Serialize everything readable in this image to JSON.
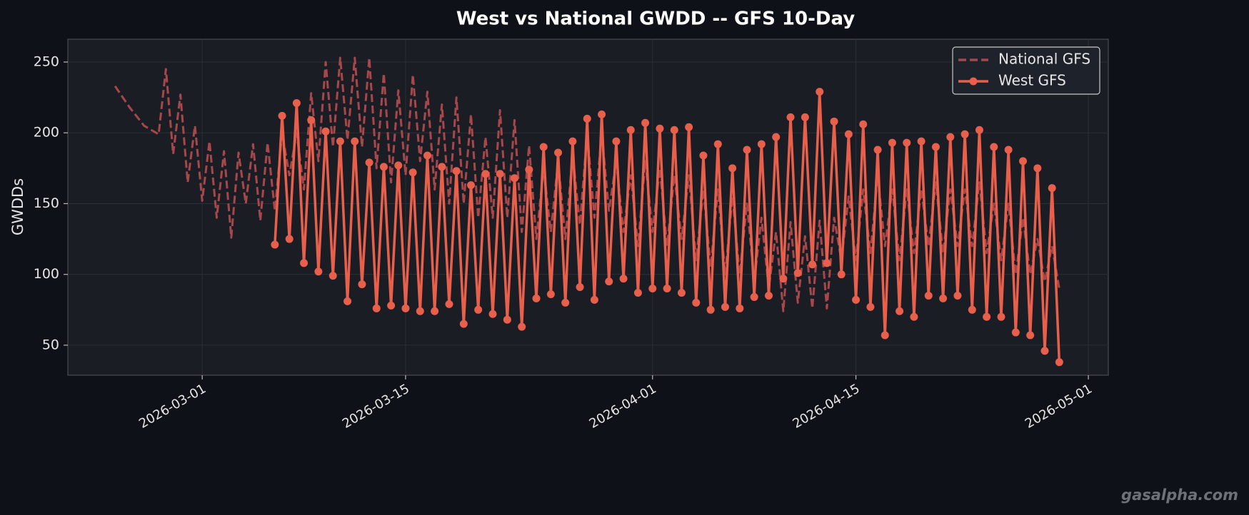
{
  "chart_data": {
    "type": "line",
    "title": "West vs National GWDD -- GFS 10-Day",
    "ylabel": "GWDDs",
    "watermark": "gasalpha.com",
    "grid": true,
    "legend": "upper right",
    "xlim": [
      "2026-02-19T18:00",
      "2026-05-02T09:00"
    ],
    "xticks": [
      "2026-03-01",
      "2026-03-15",
      "2026-04-01",
      "2026-04-15",
      "2026-05-01"
    ],
    "ylim": [
      28.8,
      266.1
    ],
    "yticks": [
      50,
      100,
      150,
      200,
      250
    ],
    "x": [
      "2026-02-23T00:00",
      "2026-02-24T00:00",
      "2026-02-25T00:00",
      "2026-02-26T00:00",
      "2026-02-26T12:00",
      "2026-02-27T00:00",
      "2026-02-27T12:00",
      "2026-02-28T00:00",
      "2026-02-28T12:00",
      "2026-03-01T00:00",
      "2026-03-01T12:00",
      "2026-03-02T00:00",
      "2026-03-02T12:00",
      "2026-03-03T00:00",
      "2026-03-03T12:00",
      "2026-03-04T00:00",
      "2026-03-04T12:00",
      "2026-03-05T00:00",
      "2026-03-05T12:00",
      "2026-03-06T00:00",
      "2026-03-06T12:00",
      "2026-03-07T00:00",
      "2026-03-07T12:00",
      "2026-03-08T00:00",
      "2026-03-08T12:00",
      "2026-03-09T00:00",
      "2026-03-09T12:00",
      "2026-03-10T00:00",
      "2026-03-10T12:00",
      "2026-03-11T00:00",
      "2026-03-11T12:00",
      "2026-03-12T00:00",
      "2026-03-12T12:00",
      "2026-03-13T00:00",
      "2026-03-13T12:00",
      "2026-03-14T00:00",
      "2026-03-14T12:00",
      "2026-03-15T00:00",
      "2026-03-15T12:00",
      "2026-03-16T00:00",
      "2026-03-16T12:00",
      "2026-03-17T00:00",
      "2026-03-17T12:00",
      "2026-03-18T00:00",
      "2026-03-18T12:00",
      "2026-03-19T00:00",
      "2026-03-19T12:00",
      "2026-03-20T00:00",
      "2026-03-20T12:00",
      "2026-03-21T00:00",
      "2026-03-21T12:00",
      "2026-03-22T00:00",
      "2026-03-22T12:00",
      "2026-03-23T00:00",
      "2026-03-23T12:00",
      "2026-03-24T00:00",
      "2026-03-24T12:00",
      "2026-03-25T00:00",
      "2026-03-25T12:00",
      "2026-03-26T00:00",
      "2026-03-26T12:00",
      "2026-03-27T00:00",
      "2026-03-27T12:00",
      "2026-03-28T00:00",
      "2026-03-28T12:00",
      "2026-03-29T00:00",
      "2026-03-29T12:00",
      "2026-03-30T00:00",
      "2026-03-30T12:00",
      "2026-03-31T00:00",
      "2026-03-31T12:00",
      "2026-04-01T00:00",
      "2026-04-01T12:00",
      "2026-04-02T00:00",
      "2026-04-02T12:00",
      "2026-04-03T00:00",
      "2026-04-03T12:00",
      "2026-04-04T00:00",
      "2026-04-04T12:00",
      "2026-04-05T00:00",
      "2026-04-05T12:00",
      "2026-04-06T00:00",
      "2026-04-06T12:00",
      "2026-04-07T00:00",
      "2026-04-07T12:00",
      "2026-04-08T00:00",
      "2026-04-08T12:00",
      "2026-04-09T00:00",
      "2026-04-09T12:00",
      "2026-04-10T00:00",
      "2026-04-10T12:00",
      "2026-04-11T00:00",
      "2026-04-11T12:00",
      "2026-04-12T00:00",
      "2026-04-12T12:00",
      "2026-04-13T00:00",
      "2026-04-13T12:00",
      "2026-04-14T00:00",
      "2026-04-14T12:00",
      "2026-04-15T00:00",
      "2026-04-15T12:00",
      "2026-04-16T00:00",
      "2026-04-16T12:00",
      "2026-04-17T00:00",
      "2026-04-17T12:00",
      "2026-04-18T00:00",
      "2026-04-18T12:00",
      "2026-04-19T00:00",
      "2026-04-19T12:00",
      "2026-04-20T00:00",
      "2026-04-20T12:00",
      "2026-04-21T00:00",
      "2026-04-21T12:00",
      "2026-04-22T00:00",
      "2026-04-22T12:00",
      "2026-04-23T00:00",
      "2026-04-23T12:00",
      "2026-04-24T00:00",
      "2026-04-24T12:00",
      "2026-04-25T00:00",
      "2026-04-25T12:00",
      "2026-04-26T00:00",
      "2026-04-26T12:00",
      "2026-04-27T00:00",
      "2026-04-27T12:00",
      "2026-04-28T00:00",
      "2026-04-28T12:00",
      "2026-04-29T00:00"
    ],
    "series": [
      {
        "name": "National GFS",
        "color": "#a5474b",
        "linestyle": "dashed",
        "marker": "none",
        "values": [
          233,
          218,
          205,
          199,
          245,
          185,
          227,
          165,
          205,
          152,
          194,
          140,
          187,
          126,
          186,
          150,
          192,
          138,
          193,
          145,
          200,
          170,
          200,
          160,
          228,
          180,
          250,
          190,
          253,
          195,
          253,
          190,
          253,
          175,
          242,
          165,
          230,
          170,
          241,
          180,
          229,
          160,
          220,
          150,
          225,
          150,
          213,
          140,
          197,
          140,
          216,
          140,
          209,
          130,
          191,
          125,
          175,
          130,
          180,
          125,
          185,
          135,
          200,
          140,
          200,
          145,
          180,
          130,
          170,
          120,
          180,
          130,
          175,
          120,
          170,
          125,
          170,
          110,
          160,
          105,
          160,
          100,
          155,
          100,
          150,
          95,
          140,
          90,
          130,
          74,
          137,
          80,
          127,
          76,
          138,
          76,
          140,
          110,
          155,
          110,
          160,
          115,
          170,
          120,
          160,
          110,
          160,
          115,
          160,
          120,
          165,
          115,
          160,
          120,
          160,
          120,
          165,
          115,
          150,
          110,
          150,
          100,
          140,
          100,
          125,
          95,
          120,
          90
        ]
      },
      {
        "name": "West GFS",
        "color": "#e8604c",
        "linestyle": "solid",
        "marker": "circle",
        "values": [
          null,
          null,
          null,
          null,
          null,
          null,
          null,
          null,
          null,
          null,
          null,
          null,
          null,
          null,
          null,
          null,
          null,
          null,
          null,
          121,
          212,
          125,
          221,
          108,
          209,
          102,
          201,
          99,
          194,
          81,
          194,
          93,
          179,
          76,
          176,
          78,
          177,
          76,
          172,
          74,
          184,
          74,
          176,
          79,
          173,
          65,
          163,
          75,
          171,
          72,
          171,
          68,
          168,
          63,
          174,
          83,
          190,
          86,
          186,
          80,
          194,
          91,
          210,
          82,
          213,
          95,
          194,
          97,
          202,
          87,
          207,
          90,
          203,
          90,
          202,
          87,
          204,
          80,
          184,
          75,
          192,
          77,
          175,
          76,
          188,
          84,
          192,
          85,
          197,
          97,
          211,
          101,
          211,
          107,
          229,
          108,
          208,
          100,
          199,
          82,
          206,
          77,
          188,
          57,
          193,
          74,
          193,
          70,
          194,
          85,
          190,
          83,
          197,
          85,
          199,
          75,
          202,
          70,
          190,
          70,
          188,
          59,
          180,
          57,
          175,
          46,
          161,
          38
        ]
      }
    ]
  }
}
